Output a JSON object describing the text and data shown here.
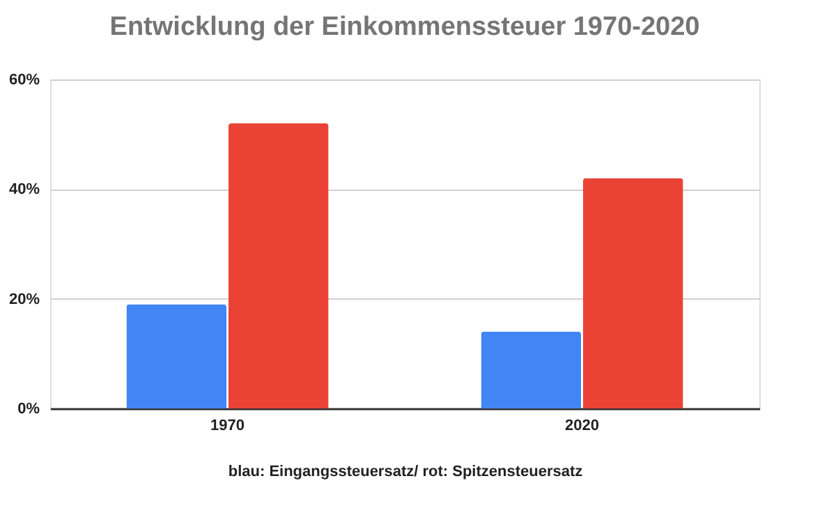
{
  "chart_data": {
    "type": "bar",
    "title": "Entwicklung der Einkommenssteuer 1970-2020",
    "xlabel": "blau: Eingangssteuersatz/ rot: Spitzensteuersatz",
    "categories": [
      "1970",
      "2020"
    ],
    "series": [
      {
        "color": "#4285f4",
        "values": [
          19,
          14
        ]
      },
      {
        "color": "#ea4335",
        "values": [
          52,
          42
        ]
      }
    ],
    "ylim": [
      0,
      60
    ],
    "yticks": [
      {
        "value": 0,
        "label": "0%"
      },
      {
        "value": 20,
        "label": "20%"
      },
      {
        "value": 40,
        "label": "40%"
      },
      {
        "value": 60,
        "label": "60%"
      }
    ],
    "grid": "y",
    "legend": false
  }
}
